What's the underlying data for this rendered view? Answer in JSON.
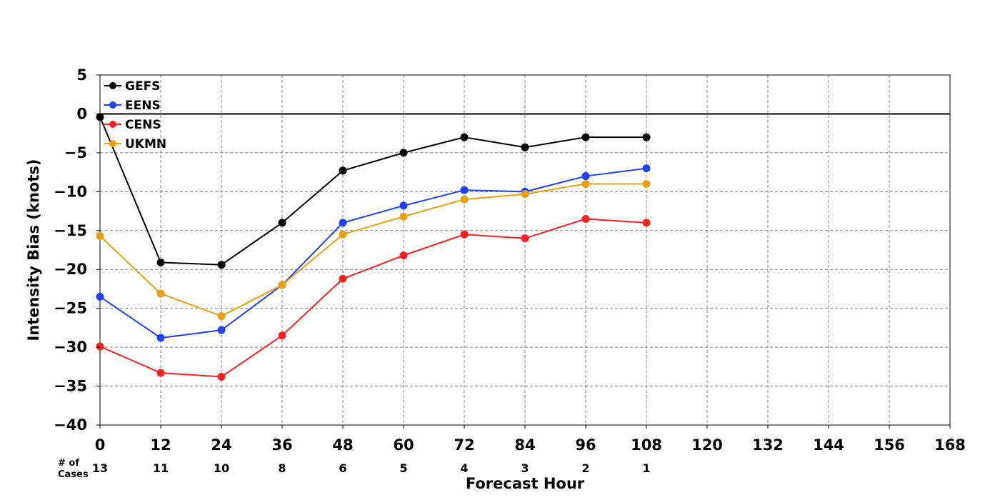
{
  "chart_data": {
    "type": "line",
    "title": "",
    "xlabel": "Forecast Hour",
    "ylabel": "Intensity Bias (knots)",
    "xlim": [
      0,
      168
    ],
    "ylim": [
      -40,
      5
    ],
    "x_ticks": [
      0,
      12,
      24,
      36,
      48,
      60,
      72,
      84,
      96,
      108,
      120,
      132,
      144,
      156,
      168
    ],
    "x_tick_labels": [
      "0",
      "12",
      "24",
      "36",
      "48",
      "60",
      "72",
      "84",
      "96",
      "108",
      "120",
      "132",
      "144",
      "156",
      "168"
    ],
    "y_ticks": [
      5,
      0,
      -5,
      -10,
      -15,
      -20,
      -25,
      -30,
      -35,
      -40
    ],
    "y_tick_labels": [
      "5",
      "0",
      "−5",
      "−10",
      "−15",
      "−20",
      "−25",
      "−30",
      "−35",
      "−40"
    ],
    "grid": true,
    "legend_position": "top-left",
    "zero_line": true,
    "x": [
      0,
      12,
      24,
      36,
      48,
      60,
      72,
      84,
      96,
      108
    ],
    "series": [
      {
        "name": "GEFS",
        "color": "#000000",
        "values": [
          -0.4,
          -19.1,
          -19.4,
          -14.0,
          -7.3,
          -5.0,
          -3.0,
          -4.3,
          -3.0,
          -3.0
        ]
      },
      {
        "name": "EENS",
        "color": "#2040ff",
        "values": [
          -23.5,
          -28.8,
          -27.8,
          -22.0,
          -14.0,
          -11.8,
          -9.8,
          -10.0,
          -8.0,
          -7.0
        ]
      },
      {
        "name": "CENS",
        "color": "#ff2020",
        "values": [
          -29.9,
          -33.3,
          -33.8,
          -28.5,
          -21.2,
          -18.2,
          -15.5,
          -16.0,
          -13.5,
          -14.0
        ]
      },
      {
        "name": "UKMN",
        "color": "#e8a010",
        "values": [
          -15.7,
          -23.1,
          -26.0,
          -22.0,
          -15.5,
          -13.2,
          -11.0,
          -10.3,
          -9.0,
          -9.0
        ]
      }
    ],
    "cases_label": "# of\nCases",
    "cases_label_lines": [
      "# of",
      "Cases"
    ],
    "cases": [
      13,
      11,
      10,
      8,
      6,
      5,
      4,
      3,
      2,
      1
    ]
  }
}
